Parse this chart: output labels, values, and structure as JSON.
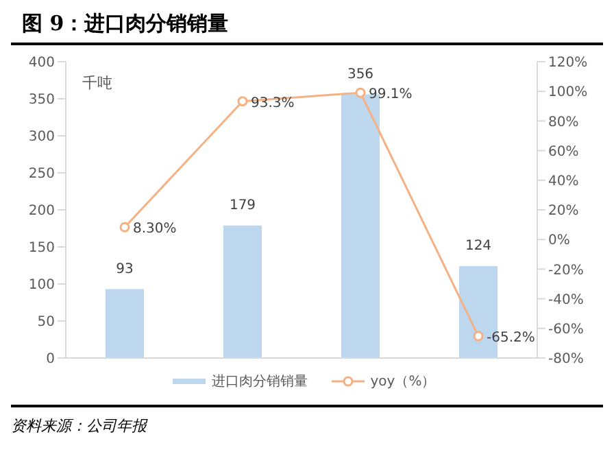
{
  "chart_data": {
    "type": "bar",
    "title": "图 9：进口肉分销销量",
    "categories": [
      null,
      null,
      null,
      null
    ],
    "series": [
      {
        "name": "进口肉分销销量",
        "color": "#bdd7ee",
        "values": [
          93,
          179,
          356,
          124
        ],
        "value_labels": [
          "93",
          "179",
          "356",
          "124"
        ]
      },
      {
        "name": "yoy（%）",
        "type": "line",
        "axis": "y2",
        "color": "#f4b183",
        "values": [
          8.3,
          93.3,
          99.1,
          -65.2
        ],
        "value_labels": [
          "8.30%",
          "93.3%",
          "99.1%",
          "-65.2%"
        ]
      }
    ],
    "ylim": [
      0,
      400
    ],
    "yticks": [
      0,
      50,
      100,
      150,
      200,
      250,
      300,
      350,
      400
    ],
    "y2lim": [
      -80,
      120
    ],
    "y2ticks": [
      {
        "value": -80,
        "label": "-80%"
      },
      {
        "value": -60,
        "label": "-60%"
      },
      {
        "value": -40,
        "label": "-40%"
      },
      {
        "value": -20,
        "label": "-20%"
      },
      {
        "value": 0,
        "label": "0%"
      },
      {
        "value": 20,
        "label": "20%"
      },
      {
        "value": 40,
        "label": "40%"
      },
      {
        "value": 60,
        "label": "60%"
      },
      {
        "value": 80,
        "label": "80%"
      },
      {
        "value": 100,
        "label": "100%"
      },
      {
        "value": 120,
        "label": "120%"
      }
    ],
    "annotations": [
      "千吨",
      "资料来源：公司年报"
    ],
    "grid": false,
    "legend": "bottom",
    "marker": "circle",
    "line_style": "solid"
  }
}
